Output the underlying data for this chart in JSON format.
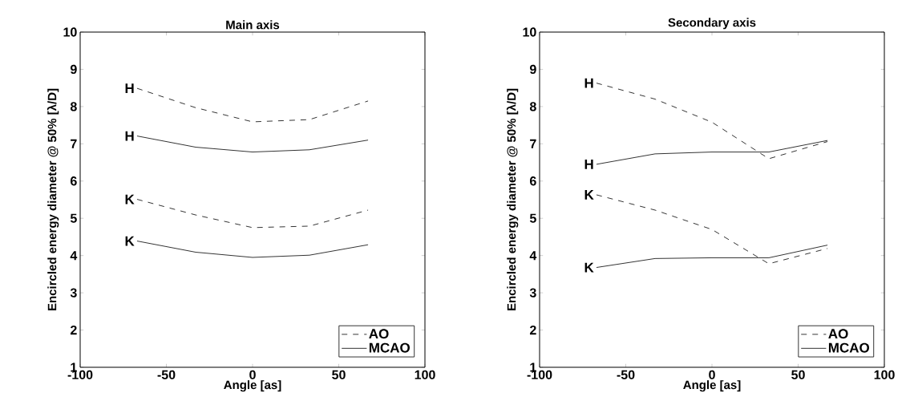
{
  "chart_data": [
    {
      "type": "line",
      "title": "Main axis",
      "xlabel": "Angle [as]",
      "ylabel": "Encircled energy diameter @ 50% [λ/D]",
      "x": [
        -67,
        -33,
        0,
        33,
        67
      ],
      "series": [
        {
          "name": "AO",
          "color": "#000000",
          "line_style": "dashed",
          "values": [
            8.49,
            7.97,
            7.59,
            7.65,
            8.15
          ]
        },
        {
          "name": "MCAO",
          "color": "#000000",
          "line_style": "solid",
          "values": [
            7.21,
            6.91,
            6.78,
            6.84,
            7.1
          ]
        },
        {
          "color": "#000000",
          "line_style": "dashed",
          "values": [
            5.51,
            5.09,
            4.75,
            4.79,
            5.22
          ]
        },
        {
          "color": "#000000",
          "line_style": "solid",
          "values": [
            4.39,
            4.09,
            3.95,
            4.01,
            4.29
          ]
        }
      ],
      "annotations": [
        "H",
        "H",
        "K",
        "K"
      ],
      "xlim": [
        -100,
        100
      ],
      "xticks": [
        -100,
        -50,
        0,
        50,
        100
      ],
      "ylim": [
        1,
        10
      ],
      "yticks": [
        1,
        2,
        3,
        4,
        5,
        6,
        7,
        8,
        9,
        10
      ],
      "legend": "bottom right"
    },
    {
      "type": "line",
      "title": "Secondary axis",
      "xlabel": "Angle [as]",
      "ylabel": "Encircled energy diameter @ 50% [λ/D]",
      "x": [
        -67,
        -33,
        0,
        33,
        67
      ],
      "series": [
        {
          "name": "AO",
          "color": "#000000",
          "line_style": "dashed",
          "values": [
            8.63,
            8.2,
            7.58,
            6.6,
            7.06
          ]
        },
        {
          "name": "MCAO",
          "color": "#000000",
          "line_style": "solid",
          "values": [
            6.45,
            6.73,
            6.78,
            6.78,
            7.09
          ]
        },
        {
          "color": "#000000",
          "line_style": "dashed",
          "values": [
            5.63,
            5.22,
            4.7,
            3.78,
            4.19
          ]
        },
        {
          "color": "#000000",
          "line_style": "solid",
          "values": [
            3.68,
            3.92,
            3.94,
            3.94,
            4.28
          ]
        }
      ],
      "annotations": [
        "H",
        "H",
        "K",
        "K"
      ],
      "xlim": [
        -100,
        100
      ],
      "xticks": [
        -100,
        -50,
        0,
        50,
        100
      ],
      "ylim": [
        1,
        10
      ],
      "yticks": [
        1,
        2,
        3,
        4,
        5,
        6,
        7,
        8,
        9,
        10
      ],
      "legend": "bottom right"
    }
  ]
}
